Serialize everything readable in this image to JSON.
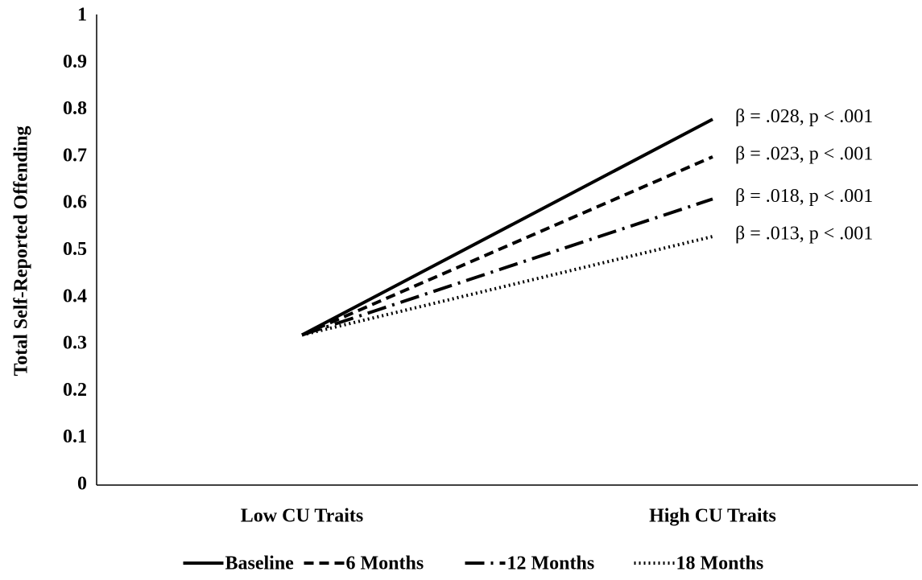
{
  "chart_data": {
    "type": "line",
    "y_label": "Total Self-Reported Offending",
    "categories": [
      "Low CU Traits",
      "High CU Traits"
    ],
    "series": [
      {
        "name": "Baseline",
        "color": "#000000",
        "dash": "none",
        "values": [
          0.32,
          0.78
        ]
      },
      {
        "name": "6 Months",
        "color": "#000000",
        "dash": "12,7",
        "values": [
          0.32,
          0.7
        ]
      },
      {
        "name": "12 Months",
        "color": "#000000",
        "dash": "24,8,3,8",
        "values": [
          0.32,
          0.61
        ]
      },
      {
        "name": "18 Months",
        "color": "#000000",
        "dash": "2,4",
        "values": [
          0.32,
          0.53
        ]
      }
    ],
    "annotations": [
      "β = .028, p < .001",
      "β = .023, p < .001",
      "β = .018, p < .001",
      "β = .013, p < .001"
    ],
    "ylim": [
      0,
      1
    ],
    "yticks": [
      0,
      0.1,
      0.2,
      0.3,
      0.4,
      0.5,
      0.6,
      0.7,
      0.8,
      0.9,
      1
    ],
    "grid": false,
    "legend": "bottom"
  }
}
